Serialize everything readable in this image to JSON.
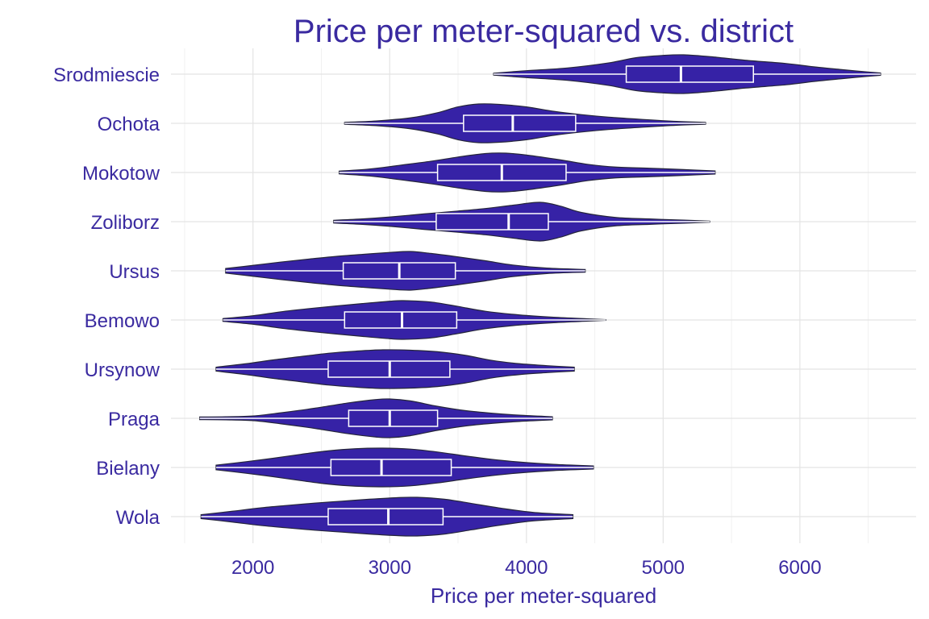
{
  "colors": {
    "violin_fill": "#3622A6",
    "violin_stroke": "#26263A",
    "box_stroke": "#FFFFFF",
    "text": "#3A2AA0",
    "grid_major": "#E4E4E4",
    "grid_minor": "#F1F1F1"
  },
  "chart_data": {
    "type": "violin",
    "orientation": "horizontal",
    "title": "Price per meter-squared vs. district",
    "xlabel": "Price per meter-squared",
    "ylabel": "",
    "xlim": [
      1400,
      6850
    ],
    "x_ticks": [
      2000,
      3000,
      4000,
      5000,
      6000
    ],
    "x_tick_labels": [
      "2000",
      "3000",
      "4000",
      "5000",
      "6000"
    ],
    "x_minor_ticks": [
      1500,
      2500,
      3500,
      4500,
      5500,
      6500
    ],
    "grid": true,
    "categories": [
      "Srodmiescie",
      "Ochota",
      "Mokotow",
      "Zoliborz",
      "Ursus",
      "Bemowo",
      "Ursynow",
      "Praga",
      "Bielany",
      "Wola"
    ],
    "series": [
      {
        "name": "Srodmiescie",
        "min": 3760,
        "q1": 4730,
        "median": 5130,
        "q3": 5660,
        "max": 6590,
        "density": [
          [
            3760,
            0.05
          ],
          [
            4000,
            0.18
          ],
          [
            4300,
            0.32
          ],
          [
            4600,
            0.58
          ],
          [
            4800,
            0.85
          ],
          [
            5000,
            0.97
          ],
          [
            5150,
            1.0
          ],
          [
            5350,
            0.9
          ],
          [
            5600,
            0.72
          ],
          [
            5900,
            0.55
          ],
          [
            6100,
            0.38
          ],
          [
            6300,
            0.24
          ],
          [
            6450,
            0.14
          ],
          [
            6590,
            0.06
          ]
        ]
      },
      {
        "name": "Ochota",
        "min": 2670,
        "q1": 3540,
        "median": 3900,
        "q3": 4360,
        "max": 5310,
        "density": [
          [
            2670,
            0.05
          ],
          [
            2900,
            0.12
          ],
          [
            3150,
            0.28
          ],
          [
            3350,
            0.55
          ],
          [
            3500,
            0.85
          ],
          [
            3650,
            1.0
          ],
          [
            3800,
            0.98
          ],
          [
            4000,
            0.85
          ],
          [
            4200,
            0.62
          ],
          [
            4400,
            0.45
          ],
          [
            4600,
            0.32
          ],
          [
            4850,
            0.2
          ],
          [
            5100,
            0.1
          ],
          [
            5310,
            0.05
          ]
        ]
      },
      {
        "name": "Mokotow",
        "min": 2630,
        "q1": 3350,
        "median": 3820,
        "q3": 4290,
        "max": 5380,
        "density": [
          [
            2630,
            0.07
          ],
          [
            2850,
            0.18
          ],
          [
            3050,
            0.35
          ],
          [
            3300,
            0.58
          ],
          [
            3500,
            0.8
          ],
          [
            3700,
            0.98
          ],
          [
            3850,
            1.0
          ],
          [
            4000,
            0.9
          ],
          [
            4250,
            0.65
          ],
          [
            4450,
            0.42
          ],
          [
            4650,
            0.28
          ],
          [
            4900,
            0.22
          ],
          [
            5150,
            0.15
          ],
          [
            5380,
            0.08
          ]
        ]
      },
      {
        "name": "Zoliborz",
        "min": 2590,
        "q1": 3340,
        "median": 3870,
        "q3": 4160,
        "max": 5340,
        "density": [
          [
            2590,
            0.07
          ],
          [
            2800,
            0.14
          ],
          [
            3000,
            0.24
          ],
          [
            3250,
            0.4
          ],
          [
            3500,
            0.55
          ],
          [
            3700,
            0.68
          ],
          [
            3900,
            0.85
          ],
          [
            4100,
            1.0
          ],
          [
            4250,
            0.8
          ],
          [
            4400,
            0.48
          ],
          [
            4650,
            0.22
          ],
          [
            4900,
            0.14
          ],
          [
            5150,
            0.08
          ],
          [
            5340,
            0.03
          ]
        ]
      },
      {
        "name": "Ursus",
        "min": 1800,
        "q1": 2660,
        "median": 3070,
        "q3": 3480,
        "max": 4430,
        "density": [
          [
            1800,
            0.12
          ],
          [
            2000,
            0.28
          ],
          [
            2200,
            0.45
          ],
          [
            2400,
            0.6
          ],
          [
            2600,
            0.74
          ],
          [
            2800,
            0.85
          ],
          [
            3000,
            0.95
          ],
          [
            3150,
            1.0
          ],
          [
            3300,
            0.9
          ],
          [
            3500,
            0.72
          ],
          [
            3700,
            0.52
          ],
          [
            3900,
            0.3
          ],
          [
            4150,
            0.14
          ],
          [
            4430,
            0.07
          ]
        ]
      },
      {
        "name": "Bemowo",
        "min": 1780,
        "q1": 2670,
        "median": 3090,
        "q3": 3490,
        "max": 4580,
        "density": [
          [
            1780,
            0.07
          ],
          [
            2000,
            0.22
          ],
          [
            2200,
            0.42
          ],
          [
            2400,
            0.58
          ],
          [
            2600,
            0.72
          ],
          [
            2800,
            0.85
          ],
          [
            3000,
            0.97
          ],
          [
            3100,
            1.0
          ],
          [
            3300,
            0.93
          ],
          [
            3500,
            0.7
          ],
          [
            3700,
            0.45
          ],
          [
            3950,
            0.26
          ],
          [
            4200,
            0.14
          ],
          [
            4450,
            0.06
          ],
          [
            4580,
            0.02
          ]
        ]
      },
      {
        "name": "Ursynow",
        "min": 1730,
        "q1": 2550,
        "median": 3000,
        "q3": 3440,
        "max": 4350,
        "density": [
          [
            1730,
            0.1
          ],
          [
            1950,
            0.28
          ],
          [
            2150,
            0.48
          ],
          [
            2350,
            0.65
          ],
          [
            2550,
            0.82
          ],
          [
            2750,
            0.93
          ],
          [
            2950,
            1.0
          ],
          [
            3150,
            0.98
          ],
          [
            3350,
            0.9
          ],
          [
            3550,
            0.72
          ],
          [
            3750,
            0.45
          ],
          [
            3950,
            0.28
          ],
          [
            4150,
            0.18
          ],
          [
            4350,
            0.1
          ]
        ]
      },
      {
        "name": "Praga",
        "min": 1610,
        "q1": 2700,
        "median": 3000,
        "q3": 3350,
        "max": 4190,
        "density": [
          [
            1610,
            0.07
          ],
          [
            1800,
            0.08
          ],
          [
            2000,
            0.12
          ],
          [
            2200,
            0.28
          ],
          [
            2450,
            0.52
          ],
          [
            2700,
            0.8
          ],
          [
            2900,
            0.97
          ],
          [
            3000,
            1.0
          ],
          [
            3150,
            0.9
          ],
          [
            3350,
            0.62
          ],
          [
            3550,
            0.4
          ],
          [
            3750,
            0.26
          ],
          [
            3950,
            0.16
          ],
          [
            4190,
            0.08
          ]
        ]
      },
      {
        "name": "Bielany",
        "min": 1730,
        "q1": 2570,
        "median": 2940,
        "q3": 3450,
        "max": 4490,
        "density": [
          [
            1730,
            0.12
          ],
          [
            1950,
            0.3
          ],
          [
            2150,
            0.48
          ],
          [
            2350,
            0.68
          ],
          [
            2550,
            0.86
          ],
          [
            2750,
            0.97
          ],
          [
            2950,
            1.0
          ],
          [
            3150,
            0.95
          ],
          [
            3350,
            0.8
          ],
          [
            3550,
            0.6
          ],
          [
            3750,
            0.42
          ],
          [
            3950,
            0.28
          ],
          [
            4200,
            0.16
          ],
          [
            4490,
            0.08
          ]
        ]
      },
      {
        "name": "Wola",
        "min": 1620,
        "q1": 2550,
        "median": 2990,
        "q3": 3390,
        "max": 4340,
        "density": [
          [
            1620,
            0.1
          ],
          [
            1850,
            0.28
          ],
          [
            2050,
            0.45
          ],
          [
            2250,
            0.58
          ],
          [
            2450,
            0.7
          ],
          [
            2650,
            0.8
          ],
          [
            2850,
            0.9
          ],
          [
            3050,
            0.98
          ],
          [
            3200,
            1.0
          ],
          [
            3400,
            0.9
          ],
          [
            3600,
            0.68
          ],
          [
            3800,
            0.45
          ],
          [
            4050,
            0.22
          ],
          [
            4340,
            0.1
          ]
        ]
      }
    ]
  }
}
